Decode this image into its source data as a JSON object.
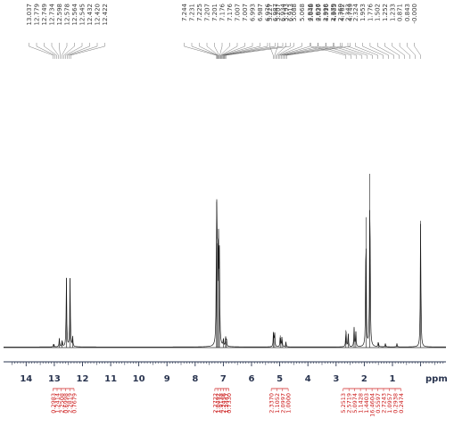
{
  "chart_data": {
    "type": "line",
    "title": "",
    "xlabel": "ppm",
    "ylabel": "",
    "x_reversed": true,
    "xlim": [
      14.8,
      -0.9
    ],
    "ylim": [
      0,
      100
    ],
    "x_ticks": [
      14,
      13,
      12,
      11,
      10,
      9,
      8,
      7,
      6,
      5,
      4,
      3,
      2,
      1
    ],
    "x_tick_labels": [
      "14",
      "13",
      "12",
      "11",
      "10",
      "9",
      "8",
      "7",
      "6",
      "5",
      "4",
      "3",
      "2",
      "1"
    ],
    "grid": false,
    "peaks": [
      {
        "ppm": 13.02,
        "height": 2
      },
      {
        "ppm": 12.82,
        "height": 5
      },
      {
        "ppm": 12.72,
        "height": 4
      },
      {
        "ppm": 12.57,
        "height": 40
      },
      {
        "ppm": 12.44,
        "height": 40
      },
      {
        "ppm": 12.35,
        "height": 6
      },
      {
        "ppm": 7.24,
        "height": 84
      },
      {
        "ppm": 7.21,
        "height": 60
      },
      {
        "ppm": 7.17,
        "height": 55
      },
      {
        "ppm": 7.14,
        "height": 48
      },
      {
        "ppm": 7.0,
        "height": 4
      },
      {
        "ppm": 6.92,
        "height": 5
      },
      {
        "ppm": 6.89,
        "height": 4
      },
      {
        "ppm": 5.22,
        "height": 9
      },
      {
        "ppm": 5.18,
        "height": 8
      },
      {
        "ppm": 4.98,
        "height": 7
      },
      {
        "ppm": 4.92,
        "height": 6
      },
      {
        "ppm": 4.78,
        "height": 3
      },
      {
        "ppm": 2.65,
        "height": 10
      },
      {
        "ppm": 2.57,
        "height": 8
      },
      {
        "ppm": 2.36,
        "height": 11
      },
      {
        "ppm": 2.3,
        "height": 9
      },
      {
        "ppm": 1.94,
        "height": 75
      },
      {
        "ppm": 1.8,
        "height": 100
      },
      {
        "ppm": 1.5,
        "height": 3
      },
      {
        "ppm": 1.25,
        "height": 2
      },
      {
        "ppm": 0.84,
        "height": 2
      },
      {
        "ppm": 0.0,
        "height": 73
      }
    ],
    "peak_labels": {
      "group1": [
        "13.037",
        "12.779",
        "12.749",
        "12.734",
        "12.598",
        "12.578",
        "12.564",
        "12.545",
        "12.432",
        "12.420",
        "12.422"
      ],
      "group2": [
        "7.244",
        "7.231",
        "7.225",
        "7.207",
        "7.201",
        "7.176",
        "7.176",
        "7.007",
        "7.007",
        "6.993",
        "6.987",
        "6.976",
        "6.987",
        "6.934",
        "6.913"
      ],
      "group3": [
        "5.227",
        "5.207",
        "5.193",
        "5.088",
        "5.068",
        "4.936",
        "4.936",
        "4.916",
        "4.905",
        "4.762",
        "4.749"
      ],
      "group4": [
        "2.648",
        "2.627",
        "2.398",
        "2.379",
        "2.360",
        "2.343",
        "2.324",
        "1.953",
        "1.776",
        "1.502",
        "1.252",
        "1.233",
        "0.871",
        "0.843",
        "-0.000"
      ]
    },
    "integrals": [
      {
        "labels": [
          "0.2983",
          "1.2414",
          "2.2508",
          "0.6998",
          "2.2819",
          "0.7679"
        ],
        "range": [
          13.05,
          12.3
        ]
      },
      {
        "labels": [
          "2.2722",
          "1.0492",
          "4.9138",
          "2.2456",
          "1.2447",
          "0.7330"
        ],
        "range": [
          7.3,
          6.8
        ]
      },
      {
        "labels": [
          "2.3370",
          "1.1052",
          "2.0997",
          "1.0000"
        ],
        "range": [
          5.3,
          4.7
        ]
      },
      {
        "labels": [
          "5.2513",
          "2.5719",
          "5.0974",
          "1.1428",
          "1.4403",
          "16.4604",
          "0.5597",
          "2.7243",
          "1.0957",
          "0.2938",
          "0.2474"
        ],
        "range": [
          2.75,
          0.7
        ]
      }
    ]
  }
}
